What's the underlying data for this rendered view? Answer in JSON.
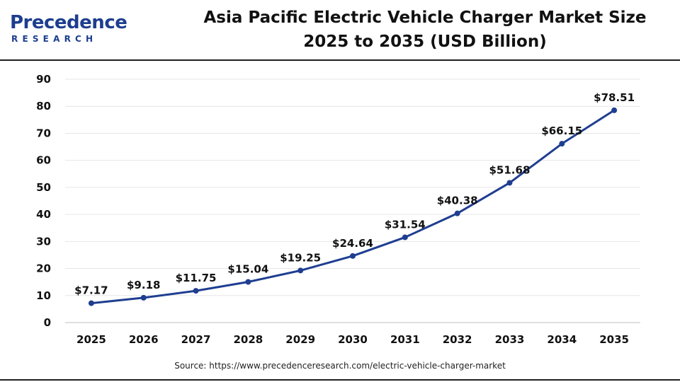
{
  "logo": {
    "main": "Precedence",
    "sub": "RESEARCH"
  },
  "title_line1": "Asia Pacific Electric Vehicle Charger Market Size",
  "title_line2": "2025 to 2035 (USD Billion)",
  "source": "Source: https://www.precedenceresearch.com/electric-vehicle-charger-market",
  "colors": {
    "line": "#1f3e91",
    "brand": "#1d3e8f",
    "text": "#111111",
    "grid": "#e6e6e6"
  },
  "chart_data": {
    "type": "line",
    "title": "Asia Pacific Electric Vehicle Charger Market Size 2025 to 2035 (USD Billion)",
    "xlabel": "",
    "ylabel": "",
    "categories": [
      "2025",
      "2026",
      "2027",
      "2028",
      "2029",
      "2030",
      "2031",
      "2032",
      "2033",
      "2034",
      "2035"
    ],
    "values": [
      7.17,
      9.18,
      11.75,
      15.04,
      19.25,
      24.64,
      31.54,
      40.38,
      51.68,
      66.15,
      78.51
    ],
    "data_labels": [
      "$7.17",
      "$9.18",
      "$11.75",
      "$15.04",
      "$19.25",
      "$24.64",
      "$31.54",
      "$40.38",
      "$51.68",
      "$66.15",
      "$78.51"
    ],
    "ylim": [
      0,
      90
    ],
    "yticks": [
      0,
      10,
      20,
      30,
      40,
      50,
      60,
      70,
      80,
      90
    ],
    "grid": true,
    "legend": "none"
  }
}
